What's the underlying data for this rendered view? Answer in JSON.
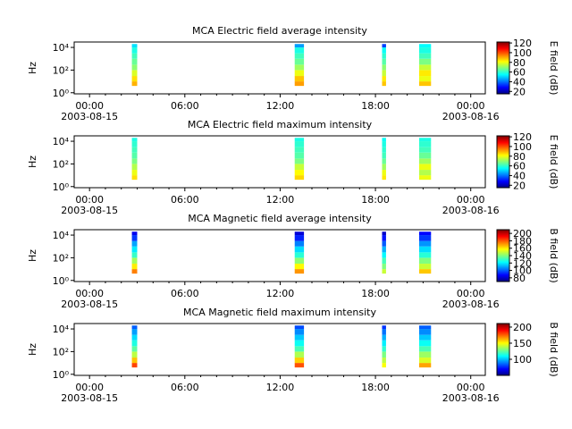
{
  "chart_data": [
    {
      "type": "spectrogram",
      "title": "MCA  Electric field average intensity",
      "y_label": "Hz",
      "colorbar_label": "E field (dB)",
      "log_y": true,
      "colormap": "jet",
      "ylim": [
        0.8,
        30000
      ],
      "yticks": [
        {
          "value": 1,
          "label": "10⁰"
        },
        {
          "value": 100,
          "label": "10²"
        },
        {
          "value": 10000,
          "label": "10⁴"
        }
      ],
      "xlim": [
        "2003-08-14T23:02",
        "2003-08-16T00:55"
      ],
      "xticks": [
        {
          "value": "2003-08-15T00:00",
          "label": "00:00\n2003-08-15"
        },
        {
          "value": "2003-08-15T06:00",
          "label": "06:00"
        },
        {
          "value": "2003-08-15T12:00",
          "label": "12:00"
        },
        {
          "value": "2003-08-15T18:00",
          "label": "18:00"
        },
        {
          "value": "2003-08-16T00:00",
          "label": "00:00\n2003-08-16"
        }
      ],
      "clim": [
        15,
        122
      ],
      "cticks": [
        20,
        40,
        60,
        80,
        100,
        120
      ],
      "freq_edges": [
        4,
        10,
        30,
        100,
        300,
        1000,
        3000,
        10000,
        20000
      ],
      "segments": [
        {
          "start": "2003-08-15T02:40",
          "end": "2003-08-15T03:00",
          "values": [
            90,
            85,
            78,
            70,
            66,
            62,
            58,
            52
          ]
        },
        {
          "start": "2003-08-15T12:55",
          "end": "2003-08-15T13:30",
          "values": [
            92,
            88,
            80,
            72,
            66,
            62,
            58,
            45
          ]
        },
        {
          "start": "2003-08-15T18:25",
          "end": "2003-08-15T18:40",
          "values": [
            88,
            84,
            76,
            70,
            64,
            60,
            56,
            35
          ]
        },
        {
          "start": "2003-08-15T20:45",
          "end": "2003-08-15T21:30",
          "values": [
            88,
            80,
            84,
            76,
            68,
            62,
            58,
            55
          ]
        }
      ]
    },
    {
      "type": "spectrogram",
      "title": "MCA  Electric field maximum intensity",
      "y_label": "Hz",
      "colorbar_label": "E field (dB)",
      "log_y": true,
      "colormap": "jet",
      "ylim": [
        0.8,
        30000
      ],
      "yticks": [
        {
          "value": 1,
          "label": "10⁰"
        },
        {
          "value": 100,
          "label": "10²"
        },
        {
          "value": 10000,
          "label": "10⁴"
        }
      ],
      "xlim": [
        "2003-08-14T23:02",
        "2003-08-16T00:55"
      ],
      "xticks": [
        {
          "value": "2003-08-15T00:00",
          "label": "00:00\n2003-08-15"
        },
        {
          "value": "2003-08-15T06:00",
          "label": "06:00"
        },
        {
          "value": "2003-08-15T12:00",
          "label": "12:00"
        },
        {
          "value": "2003-08-15T18:00",
          "label": "18:00"
        },
        {
          "value": "2003-08-16T00:00",
          "label": "00:00\n2003-08-16"
        }
      ],
      "clim": [
        15,
        122
      ],
      "cticks": [
        20,
        40,
        60,
        80,
        100,
        120
      ],
      "freq_edges": [
        4,
        10,
        30,
        100,
        300,
        1000,
        3000,
        10000,
        20000
      ],
      "segments": [
        {
          "start": "2003-08-15T02:40",
          "end": "2003-08-15T03:00",
          "values": [
            85,
            80,
            74,
            68,
            64,
            62,
            60,
            58
          ]
        },
        {
          "start": "2003-08-15T12:55",
          "end": "2003-08-15T13:30",
          "values": [
            86,
            82,
            76,
            68,
            64,
            62,
            60,
            58
          ]
        },
        {
          "start": "2003-08-15T18:25",
          "end": "2003-08-15T18:40",
          "values": [
            84,
            80,
            72,
            66,
            62,
            60,
            58,
            56
          ]
        },
        {
          "start": "2003-08-15T20:45",
          "end": "2003-08-15T21:30",
          "values": [
            80,
            74,
            80,
            72,
            66,
            62,
            60,
            58
          ]
        }
      ]
    },
    {
      "type": "spectrogram",
      "title": "MCA  Magnetic field average intensity",
      "y_label": "Hz",
      "colorbar_label": "B field (dB)",
      "log_y": true,
      "colormap": "jet",
      "ylim": [
        0.8,
        30000
      ],
      "yticks": [
        {
          "value": 1,
          "label": "10⁰"
        },
        {
          "value": 100,
          "label": "10²"
        },
        {
          "value": 10000,
          "label": "10⁴"
        }
      ],
      "xlim": [
        "2003-08-14T23:02",
        "2003-08-16T00:55"
      ],
      "xticks": [
        {
          "value": "2003-08-15T00:00",
          "label": "00:00\n2003-08-15"
        },
        {
          "value": "2003-08-15T06:00",
          "label": "06:00"
        },
        {
          "value": "2003-08-15T12:00",
          "label": "12:00"
        },
        {
          "value": "2003-08-15T18:00",
          "label": "18:00"
        },
        {
          "value": "2003-08-16T00:00",
          "label": "00:00\n2003-08-16"
        }
      ],
      "clim": [
        70,
        210
      ],
      "cticks": [
        80,
        100,
        120,
        140,
        160,
        180,
        200
      ],
      "freq_edges": [
        4,
        10,
        30,
        100,
        300,
        1000,
        3000,
        10000,
        20000
      ],
      "segments": [
        {
          "start": "2003-08-15T02:40",
          "end": "2003-08-15T03:00",
          "values": [
            175,
            160,
            145,
            130,
            120,
            110,
            95,
            85
          ]
        },
        {
          "start": "2003-08-15T12:55",
          "end": "2003-08-15T13:30",
          "values": [
            172,
            158,
            142,
            128,
            118,
            105,
            92,
            82
          ]
        },
        {
          "start": "2003-08-15T18:25",
          "end": "2003-08-15T18:40",
          "values": [
            150,
            140,
            132,
            122,
            112,
            100,
            90,
            80
          ]
        },
        {
          "start": "2003-08-15T20:45",
          "end": "2003-08-15T21:30",
          "values": [
            165,
            150,
            140,
            128,
            118,
            108,
            95,
            88
          ]
        }
      ]
    },
    {
      "type": "spectrogram",
      "title": "MCA  Magnetic field maximum intensity",
      "y_label": "Hz",
      "colorbar_label": "B field (dB)",
      "log_y": true,
      "colormap": "jet",
      "ylim": [
        0.8,
        30000
      ],
      "yticks": [
        {
          "value": 1,
          "label": "10⁰"
        },
        {
          "value": 100,
          "label": "10²"
        },
        {
          "value": 10000,
          "label": "10⁴"
        }
      ],
      "xlim": [
        "2003-08-14T23:02",
        "2003-08-16T00:55"
      ],
      "xticks": [
        {
          "value": "2003-08-15T00:00",
          "label": "00:00\n2003-08-15"
        },
        {
          "value": "2003-08-15T06:00",
          "label": "06:00"
        },
        {
          "value": "2003-08-15T12:00",
          "label": "12:00"
        },
        {
          "value": "2003-08-15T18:00",
          "label": "18:00"
        },
        {
          "value": "2003-08-16T00:00",
          "label": "00:00\n2003-08-16"
        }
      ],
      "clim": [
        50,
        211
      ],
      "cticks": [
        100,
        150,
        200
      ],
      "freq_edges": [
        4,
        10,
        30,
        100,
        300,
        1000,
        3000,
        10000,
        20000
      ],
      "segments": [
        {
          "start": "2003-08-15T02:40",
          "end": "2003-08-15T03:00",
          "values": [
            180,
            160,
            140,
            125,
            115,
            105,
            95,
            85
          ]
        },
        {
          "start": "2003-08-15T12:55",
          "end": "2003-08-15T13:30",
          "values": [
            178,
            158,
            138,
            122,
            112,
            102,
            92,
            82
          ]
        },
        {
          "start": "2003-08-15T18:25",
          "end": "2003-08-15T18:40",
          "values": [
            150,
            140,
            130,
            118,
            108,
            98,
            88,
            78
          ]
        },
        {
          "start": "2003-08-15T20:45",
          "end": "2003-08-15T21:30",
          "values": [
            165,
            145,
            135,
            122,
            112,
            102,
            92,
            85
          ]
        }
      ]
    }
  ]
}
